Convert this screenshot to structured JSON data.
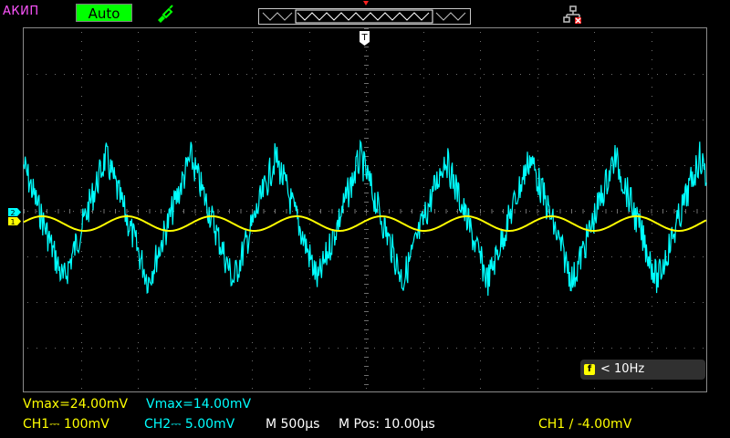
{
  "header": {
    "brand": "АКИП",
    "mode": "Auto",
    "icons": [
      "probe-icon",
      "timebase-window-icon",
      "usb-disconnected-icon"
    ]
  },
  "screen": {
    "trigger_marker_label": "T",
    "channel_marker_labels": [
      "2",
      "1"
    ]
  },
  "frequency": {
    "badge": "f",
    "value": "< 10Hz"
  },
  "measurements": {
    "ch1_vmax": "Vmax=24.00mV",
    "ch2_vmax": "Vmax=14.00mV"
  },
  "status": {
    "ch1": "CH1⎓ 100mV",
    "ch2": "CH2⎓ 5.00mV",
    "timebase": "M 500µs",
    "mpos": "M Pos: 10.00µs",
    "trigger": "CH1 ∕ -4.00mV"
  },
  "colors": {
    "ch1": "#ffff00",
    "ch2": "#00ffff",
    "mode_bg": "#00ff00",
    "brand": "#ff55ff"
  }
}
